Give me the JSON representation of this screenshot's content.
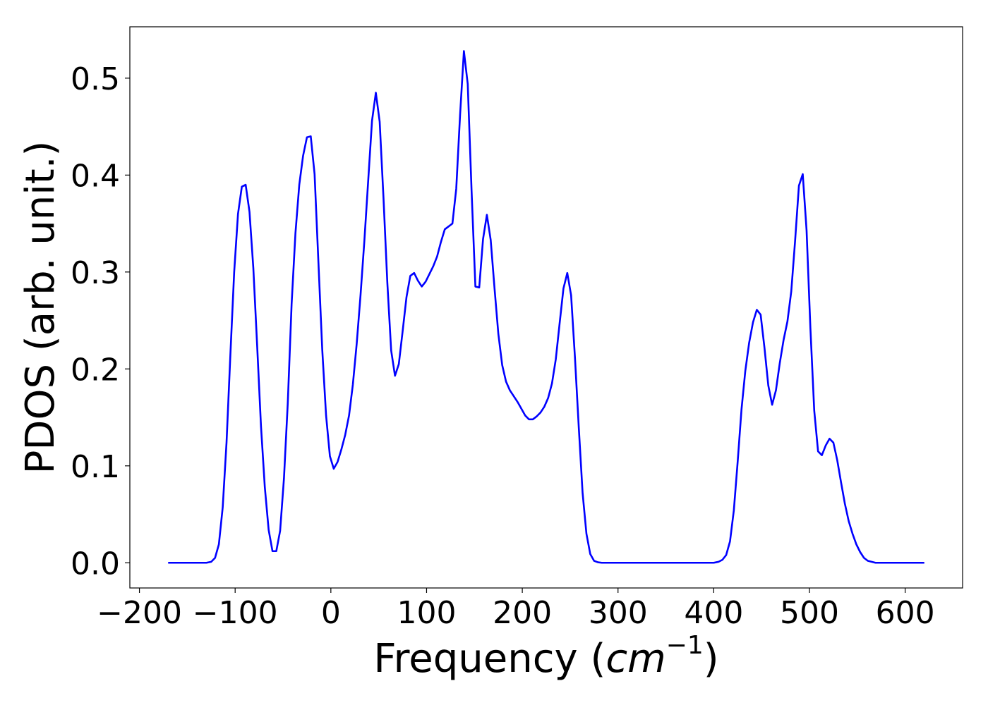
{
  "chart_data": {
    "type": "line",
    "title": "",
    "xlabel": {
      "prefix": "Frequency (",
      "unit": "cm",
      "exponent": "−1",
      "suffix": ")"
    },
    "ylabel": "PDOS (arb. unit.)",
    "xlim": [
      -210,
      660
    ],
    "ylim": [
      -0.026,
      0.553
    ],
    "xticks": [
      -200,
      -100,
      0,
      100,
      200,
      300,
      400,
      500,
      600
    ],
    "xtick_labels": [
      "−200",
      "−100",
      "0",
      "100",
      "200",
      "300",
      "400",
      "500",
      "600"
    ],
    "yticks": [
      0.0,
      0.1,
      0.2,
      0.3,
      0.4,
      0.5
    ],
    "ytick_labels": [
      "0.0",
      "0.1",
      "0.2",
      "0.3",
      "0.4",
      "0.5"
    ],
    "grid": false,
    "legend": "none",
    "series": [
      {
        "color": "#0000ff",
        "x": [
          -170,
          -150,
          -130,
          -125,
          -121,
          -117,
          -113,
          -109,
          -105,
          -101,
          -97,
          -93,
          -89,
          -85,
          -81,
          -77,
          -73,
          -69,
          -65,
          -61,
          -57,
          -53,
          -49,
          -45,
          -41,
          -37,
          -33,
          -29,
          -25,
          -21,
          -17,
          -13,
          -9,
          -5,
          -1,
          3,
          7,
          11,
          15,
          19,
          23,
          27,
          31,
          35,
          39,
          43,
          47,
          51,
          55,
          59,
          63,
          67,
          71,
          75,
          79,
          83,
          87,
          91,
          95,
          99,
          103,
          107,
          111,
          115,
          119,
          123,
          127,
          131,
          135,
          139,
          143,
          147,
          151,
          155,
          159,
          163,
          167,
          171,
          175,
          179,
          183,
          187,
          191,
          195,
          199,
          203,
          207,
          211,
          215,
          219,
          223,
          227,
          231,
          235,
          239,
          243,
          247,
          251,
          255,
          259,
          263,
          267,
          271,
          275,
          279,
          283,
          290,
          300,
          350,
          400,
          405,
          409,
          413,
          417,
          421,
          425,
          429,
          433,
          437,
          441,
          445,
          449,
          453,
          457,
          461,
          465,
          469,
          473,
          477,
          481,
          485,
          489,
          493,
          497,
          501,
          505,
          509,
          513,
          517,
          521,
          525,
          529,
          533,
          537,
          541,
          545,
          549,
          553,
          557,
          561,
          565,
          569,
          575,
          600,
          620
        ],
        "y": [
          0.0,
          0.0,
          0.0,
          0.001,
          0.005,
          0.019,
          0.057,
          0.124,
          0.214,
          0.3,
          0.36,
          0.388,
          0.39,
          0.362,
          0.304,
          0.224,
          0.141,
          0.078,
          0.034,
          0.012,
          0.012,
          0.033,
          0.087,
          0.165,
          0.267,
          0.34,
          0.39,
          0.42,
          0.439,
          0.44,
          0.401,
          0.31,
          0.22,
          0.152,
          0.11,
          0.097,
          0.104,
          0.117,
          0.132,
          0.152,
          0.184,
          0.226,
          0.276,
          0.332,
          0.394,
          0.456,
          0.485,
          0.455,
          0.376,
          0.289,
          0.219,
          0.193,
          0.205,
          0.239,
          0.274,
          0.296,
          0.299,
          0.291,
          0.285,
          0.29,
          0.298,
          0.306,
          0.316,
          0.331,
          0.344,
          0.347,
          0.35,
          0.386,
          0.462,
          0.528,
          0.494,
          0.384,
          0.285,
          0.284,
          0.334,
          0.359,
          0.333,
          0.283,
          0.236,
          0.204,
          0.187,
          0.178,
          0.172,
          0.166,
          0.159,
          0.152,
          0.148,
          0.148,
          0.151,
          0.155,
          0.161,
          0.17,
          0.185,
          0.21,
          0.247,
          0.283,
          0.299,
          0.276,
          0.212,
          0.14,
          0.072,
          0.03,
          0.009,
          0.002,
          0.0005,
          0.0,
          0.0,
          0.0,
          0.0,
          0.0,
          0.001,
          0.003,
          0.008,
          0.022,
          0.054,
          0.104,
          0.158,
          0.198,
          0.227,
          0.248,
          0.261,
          0.256,
          0.222,
          0.183,
          0.163,
          0.178,
          0.206,
          0.23,
          0.249,
          0.28,
          0.332,
          0.389,
          0.401,
          0.343,
          0.242,
          0.157,
          0.115,
          0.111,
          0.121,
          0.128,
          0.124,
          0.106,
          0.083,
          0.061,
          0.043,
          0.03,
          0.019,
          0.011,
          0.005,
          0.002,
          0.001,
          0.0,
          0.0,
          0.0,
          0.0
        ]
      }
    ]
  }
}
